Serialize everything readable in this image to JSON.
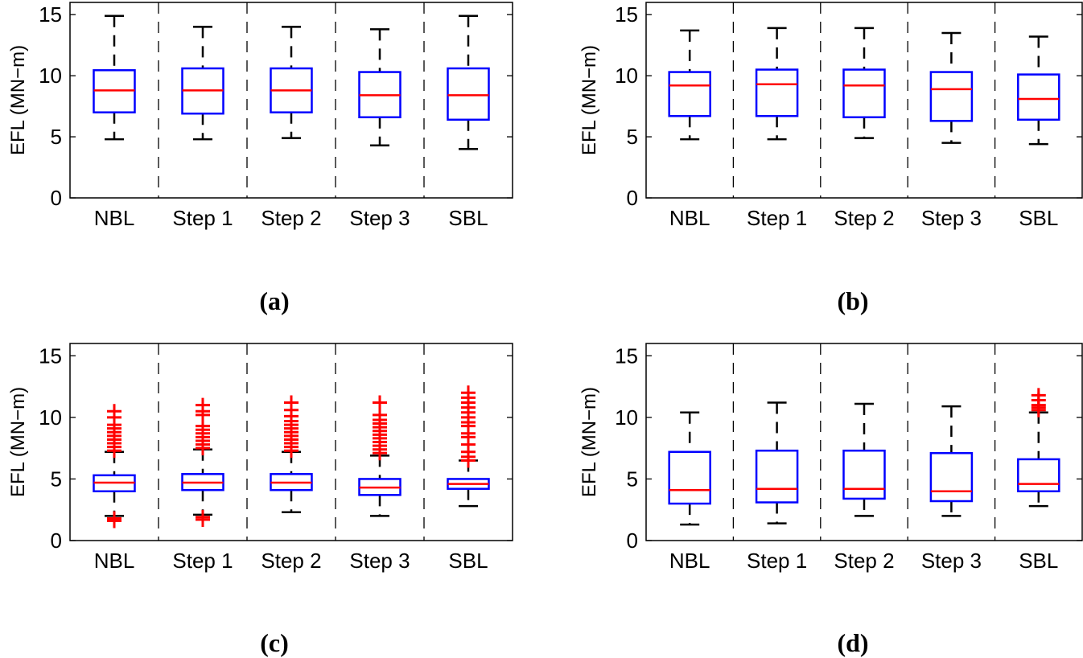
{
  "chart_data": [
    {
      "type": "box",
      "panel_label": "(a)",
      "ylabel": "EFL (MN−m)",
      "ylim": [
        0,
        16
      ],
      "yticks": [
        0,
        5,
        10,
        15
      ],
      "categories": [
        "NBL",
        "Step 1",
        "Step 2",
        "Step 3",
        "SBL"
      ],
      "boxes": [
        {
          "whisker_high": 14.9,
          "q3": 10.45,
          "median": 8.8,
          "q1": 7.0,
          "whisker_low": 4.8,
          "outliers": []
        },
        {
          "whisker_high": 14.0,
          "q3": 10.6,
          "median": 8.8,
          "q1": 6.9,
          "whisker_low": 4.8,
          "outliers": []
        },
        {
          "whisker_high": 14.0,
          "q3": 10.6,
          "median": 8.8,
          "q1": 7.0,
          "whisker_low": 4.9,
          "outliers": []
        },
        {
          "whisker_high": 13.8,
          "q3": 10.3,
          "median": 8.4,
          "q1": 6.6,
          "whisker_low": 4.3,
          "outliers": []
        },
        {
          "whisker_high": 14.9,
          "q3": 10.6,
          "median": 8.4,
          "q1": 6.4,
          "whisker_low": 4.0,
          "outliers": []
        }
      ]
    },
    {
      "type": "box",
      "panel_label": "(b)",
      "ylabel": "EFL (MN−m)",
      "ylim": [
        0,
        16
      ],
      "yticks": [
        0,
        5,
        10,
        15
      ],
      "categories": [
        "NBL",
        "Step 1",
        "Step 2",
        "Step 3",
        "SBL"
      ],
      "boxes": [
        {
          "whisker_high": 13.7,
          "q3": 10.3,
          "median": 9.2,
          "q1": 6.7,
          "whisker_low": 4.8,
          "outliers": []
        },
        {
          "whisker_high": 13.9,
          "q3": 10.5,
          "median": 9.3,
          "q1": 6.7,
          "whisker_low": 4.8,
          "outliers": []
        },
        {
          "whisker_high": 13.9,
          "q3": 10.5,
          "median": 9.2,
          "q1": 6.6,
          "whisker_low": 4.9,
          "outliers": []
        },
        {
          "whisker_high": 13.5,
          "q3": 10.3,
          "median": 8.9,
          "q1": 6.3,
          "whisker_low": 4.5,
          "outliers": []
        },
        {
          "whisker_high": 13.2,
          "q3": 10.1,
          "median": 8.1,
          "q1": 6.4,
          "whisker_low": 4.4,
          "outliers": []
        }
      ]
    },
    {
      "type": "box",
      "panel_label": "(c)",
      "ylabel": "EFL (MN−m)",
      "ylim": [
        0,
        16
      ],
      "yticks": [
        0,
        5,
        10,
        15
      ],
      "categories": [
        "NBL",
        "Step 1",
        "Step 2",
        "Step 3",
        "SBL"
      ],
      "boxes": [
        {
          "whisker_high": 7.2,
          "q3": 5.3,
          "median": 4.7,
          "q1": 4.0,
          "whisker_low": 2.0,
          "outliers": [
            7.3,
            7.6,
            7.9,
            8.2,
            8.5,
            8.8,
            9.1,
            9.4,
            10.0,
            10.5,
            1.6,
            1.8
          ]
        },
        {
          "whisker_high": 7.4,
          "q3": 5.4,
          "median": 4.7,
          "q1": 4.1,
          "whisker_low": 2.1,
          "outliers": [
            7.5,
            7.8,
            8.1,
            8.4,
            8.7,
            9.0,
            9.3,
            10.2,
            10.5,
            11.0,
            1.7,
            1.9
          ]
        },
        {
          "whisker_high": 7.2,
          "q3": 5.4,
          "median": 4.7,
          "q1": 4.1,
          "whisker_low": 2.3,
          "outliers": [
            7.3,
            7.6,
            7.9,
            8.2,
            8.5,
            8.8,
            9.1,
            9.4,
            9.7,
            10.1,
            10.6,
            11.2
          ]
        },
        {
          "whisker_high": 6.9,
          "q3": 5.0,
          "median": 4.3,
          "q1": 3.7,
          "whisker_low": 2.0,
          "outliers": [
            7.1,
            7.4,
            7.7,
            8.0,
            8.3,
            8.6,
            8.9,
            9.2,
            9.5,
            9.8,
            10.2,
            11.2
          ]
        },
        {
          "whisker_high": 6.5,
          "q3": 5.0,
          "median": 4.6,
          "q1": 4.2,
          "whisker_low": 2.8,
          "outliers": [
            6.5,
            6.8,
            7.2,
            7.8,
            8.4,
            8.7,
            9.3,
            9.6,
            10.0,
            10.4,
            10.8,
            11.2,
            11.6,
            12.0
          ]
        }
      ]
    },
    {
      "type": "box",
      "panel_label": "(d)",
      "ylabel": "EFL (MN−m)",
      "ylim": [
        0,
        16
      ],
      "yticks": [
        0,
        5,
        10,
        15
      ],
      "categories": [
        "NBL",
        "Step 1",
        "Step 2",
        "Step 3",
        "SBL"
      ],
      "boxes": [
        {
          "whisker_high": 10.4,
          "q3": 7.2,
          "median": 4.1,
          "q1": 3.0,
          "whisker_low": 1.3,
          "outliers": []
        },
        {
          "whisker_high": 11.2,
          "q3": 7.3,
          "median": 4.2,
          "q1": 3.1,
          "whisker_low": 1.4,
          "outliers": []
        },
        {
          "whisker_high": 11.1,
          "q3": 7.3,
          "median": 4.2,
          "q1": 3.4,
          "whisker_low": 2.0,
          "outliers": []
        },
        {
          "whisker_high": 10.9,
          "q3": 7.1,
          "median": 4.0,
          "q1": 3.2,
          "whisker_low": 2.0,
          "outliers": []
        },
        {
          "whisker_high": 10.4,
          "q3": 6.6,
          "median": 4.6,
          "q1": 4.0,
          "whisker_low": 2.8,
          "outliers": [
            10.6,
            10.8,
            11.0,
            11.4,
            11.8
          ]
        }
      ]
    }
  ],
  "colors": {
    "box": "#0000ff",
    "median": "#ff0000",
    "outlier": "#ff0000",
    "whisker": "#000000"
  }
}
